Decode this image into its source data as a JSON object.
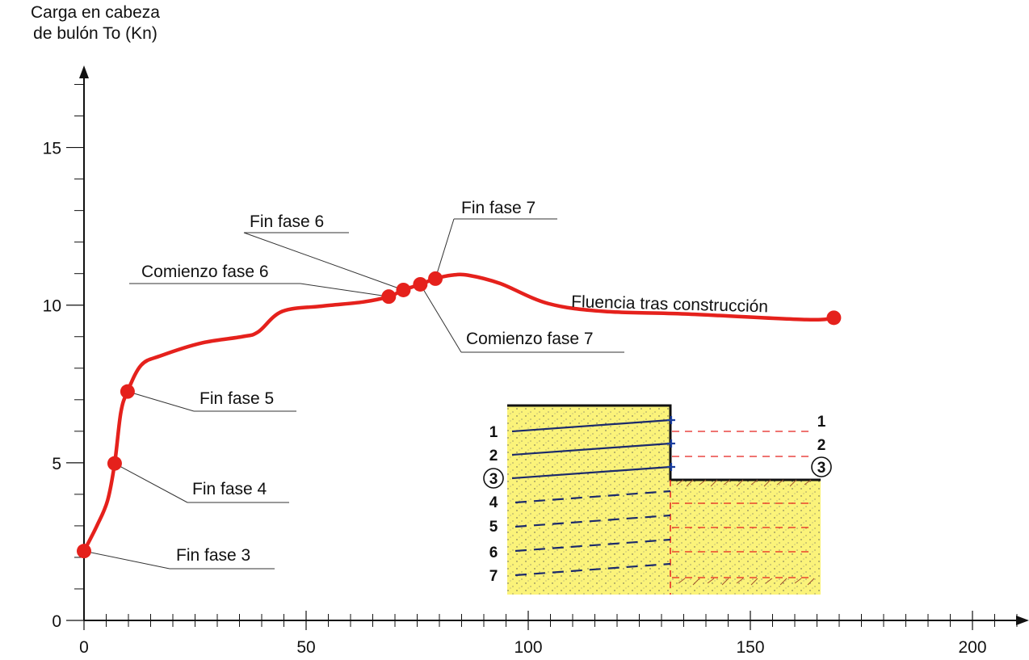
{
  "chart_data": {
    "type": "line",
    "ylabel": [
      "Carga en cabeza",
      "de bulón To (Kn)"
    ],
    "xlim": [
      0,
      212
    ],
    "ylim": [
      0,
      17.5
    ],
    "xticks": [
      0,
      50,
      100,
      150,
      200
    ],
    "yticks": [
      0,
      5,
      10,
      15
    ],
    "xminorticks": [
      5,
      10,
      15,
      20,
      25,
      30,
      35,
      40,
      45,
      55,
      60,
      65,
      70,
      75,
      80,
      85,
      90,
      95,
      105,
      110,
      115,
      120,
      125,
      130,
      135,
      140,
      145,
      155,
      160,
      165,
      170,
      175,
      180,
      185,
      190,
      195,
      205,
      210
    ],
    "yminorticks": [
      1,
      2,
      3,
      4,
      6,
      7,
      8,
      9,
      11,
      12,
      13,
      14,
      16,
      17
    ],
    "series": [
      {
        "color": "#e5211c",
        "x": [
          0,
          2.9,
          5.3,
          6.9,
          8.3,
          9.8,
          12.9,
          17.4,
          26.5,
          35.6,
          39.2,
          44.6,
          53.7,
          62.8,
          68.6,
          71.9,
          75.7,
          79.1,
          82.8,
          86.4,
          93.6,
          104.5,
          117.2,
          135.4,
          162.6,
          168.8
        ],
        "values": [
          2.2,
          3.0,
          3.8,
          4.98,
          6.6,
          7.26,
          8.1,
          8.4,
          8.8,
          9.0,
          9.15,
          9.8,
          9.97,
          10.1,
          10.27,
          10.48,
          10.66,
          10.84,
          10.95,
          10.95,
          10.69,
          10.05,
          9.8,
          9.72,
          9.54,
          9.6
        ]
      }
    ],
    "annotations": [
      {
        "text": "Fin fase 3",
        "x": 0,
        "y": 2.2
      },
      {
        "text": "Fin fase 4",
        "x": 6.9,
        "y": 4.98
      },
      {
        "text": "Fin fase 5",
        "x": 9.8,
        "y": 7.26
      },
      {
        "text": "Comienzo fase 6",
        "x": 68.6,
        "y": 10.27
      },
      {
        "text": "Fin fase 6",
        "x": 71.9,
        "y": 10.48
      },
      {
        "text": "Comienzo fase 7",
        "x": 75.7,
        "y": 10.66
      },
      {
        "text": "Fin fase 7",
        "x": 79.1,
        "y": 10.84
      },
      {
        "text": "Fluencia tras construcción",
        "x": 168.8,
        "y": 9.6
      }
    ]
  },
  "inset": {
    "left_labels": [
      "1",
      "2",
      "3",
      "4",
      "5",
      "6",
      "7"
    ],
    "right_labels": [
      "1",
      "2",
      "3"
    ]
  }
}
